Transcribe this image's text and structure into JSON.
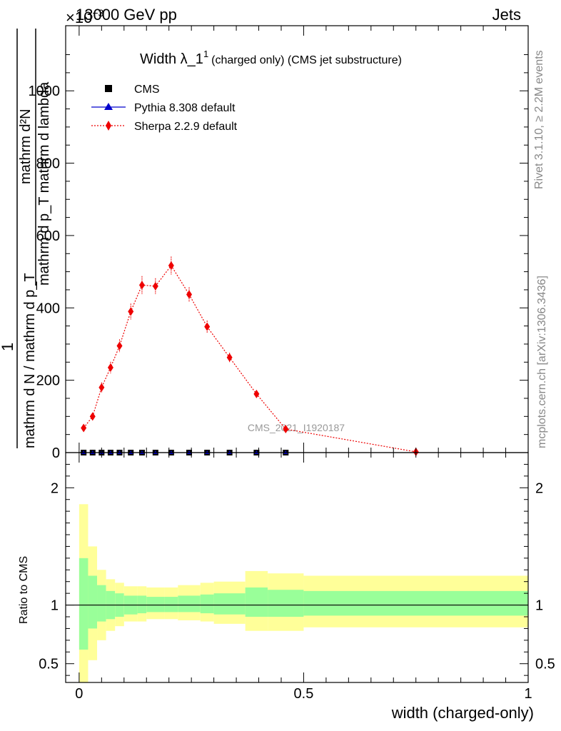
{
  "header": {
    "left": "13000 GeV pp",
    "right": "Jets",
    "exponent": "×10",
    "exponent_power": "−3"
  },
  "side_labels": {
    "rivet": "Rivet 3.1.10, ≥ 2.2M events",
    "mcplots": "mcplots.cern.ch [arXiv:1306.3436]"
  },
  "title": {
    "main": "Width λ_1",
    "superscript": "1",
    "suffix": "(charged only) (CMS jet substructure)"
  },
  "ylabel": {
    "numerator": "1",
    "denominator": "mathrm d N / mathrm d p_T",
    "main_num": "mathrm d²N",
    "main_den": "mathrm d p_T mathrm d lambda"
  },
  "watermark": "CMS_2021_I1920187",
  "legend": [
    {
      "label": "CMS",
      "color": "#000000",
      "marker": "square"
    },
    {
      "label": "Pythia 8.308 default",
      "color": "#0000cc",
      "marker": "triangle"
    },
    {
      "label": "Sherpa 2.2.9 default",
      "color": "#ee0000",
      "marker": "diamond"
    }
  ],
  "ratio_ylabel": "Ratio to CMS",
  "xlabel": "width (charged-only)",
  "chart_data": {
    "type": "line",
    "xlim": [
      -0.03,
      1.0
    ],
    "ylim": [
      0,
      1180
    ],
    "y_scale_note": "×10^-3",
    "yticks": [
      0,
      200,
      400,
      600,
      800,
      1000
    ],
    "xticks": [
      0,
      0.5,
      1
    ],
    "xtick_labels": [
      "0",
      "0.5",
      "1"
    ],
    "series": [
      {
        "name": "CMS",
        "color": "#000000",
        "x": [
          0.01,
          0.03,
          0.05,
          0.07,
          0.09,
          0.115,
          0.14,
          0.17,
          0.205,
          0.245,
          0.285,
          0.335,
          0.395,
          0.46
        ],
        "y": [
          0,
          0,
          0,
          0,
          0,
          0,
          0,
          0,
          0,
          0,
          0,
          0,
          0,
          0
        ]
      },
      {
        "name": "Pythia 8.308 default",
        "color": "#0000cc",
        "x": [
          0.01,
          0.03,
          0.05,
          0.07,
          0.09,
          0.115,
          0.14,
          0.17,
          0.205,
          0.245,
          0.285,
          0.335,
          0.395,
          0.46
        ],
        "y": [
          0,
          0,
          0,
          0,
          0,
          0,
          0,
          0,
          0,
          0,
          0,
          0,
          0,
          0
        ]
      },
      {
        "name": "Sherpa 2.2.9 default",
        "color": "#ee0000",
        "x": [
          0.01,
          0.03,
          0.05,
          0.07,
          0.09,
          0.115,
          0.14,
          0.17,
          0.205,
          0.245,
          0.285,
          0.335,
          0.395,
          0.46,
          0.75
        ],
        "y": [
          68,
          100,
          180,
          235,
          295,
          390,
          463,
          460,
          517,
          437,
          348,
          263,
          162,
          65,
          2
        ],
        "yerr": [
          8,
          10,
          14,
          16,
          18,
          22,
          25,
          22,
          25,
          20,
          17,
          13,
          9,
          5,
          1
        ]
      }
    ],
    "ratio": {
      "ylim": [
        0.34,
        2.3
      ],
      "yticks": [
        0.5,
        1,
        2
      ],
      "ytick_labels": [
        "0.5",
        "1",
        "2"
      ],
      "reference": 1,
      "bands": {
        "edges": [
          0.0,
          0.02,
          0.04,
          0.06,
          0.08,
          0.1,
          0.13,
          0.15,
          0.19,
          0.22,
          0.27,
          0.3,
          0.37,
          0.42,
          0.5,
          1.0
        ],
        "inner_lo": [
          0.62,
          0.8,
          0.86,
          0.88,
          0.9,
          0.92,
          0.93,
          0.94,
          0.94,
          0.94,
          0.93,
          0.92,
          0.9,
          0.9,
          0.91
        ],
        "inner_hi": [
          1.4,
          1.25,
          1.17,
          1.12,
          1.1,
          1.08,
          1.08,
          1.07,
          1.07,
          1.08,
          1.09,
          1.1,
          1.15,
          1.13,
          1.12
        ],
        "outer_lo": [
          0.34,
          0.53,
          0.7,
          0.78,
          0.82,
          0.86,
          0.86,
          0.88,
          0.88,
          0.87,
          0.86,
          0.84,
          0.78,
          0.78,
          0.81
        ],
        "outer_hi": [
          1.86,
          1.5,
          1.3,
          1.22,
          1.19,
          1.16,
          1.16,
          1.15,
          1.15,
          1.17,
          1.19,
          1.2,
          1.29,
          1.27,
          1.25
        ],
        "inner_color": "#99ff99",
        "outer_color": "#ffff99"
      }
    }
  }
}
